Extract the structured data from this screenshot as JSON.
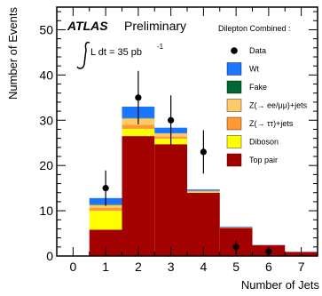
{
  "chart_data": {
    "type": "bar",
    "stacked": true,
    "xlabel": "Number of Jets",
    "ylabel": "Number of Events",
    "xlim": [
      -0.5,
      7.5
    ],
    "ylim": [
      0,
      55
    ],
    "x_ticks": [
      "0",
      "1",
      "2",
      "3",
      "4",
      "5",
      "6",
      "7"
    ],
    "y_ticks": [
      "0",
      "10",
      "20",
      "30",
      "40",
      "50"
    ],
    "categories": [
      "0",
      "1",
      "2",
      "3",
      "4",
      "5",
      "6",
      "7"
    ],
    "annotations": {
      "experiment": "ATLAS",
      "status": "Preliminary",
      "luminosity": "L dt =  35  pb",
      "luminosity_exponent": "-1"
    },
    "legend": {
      "title": "Dilepton Combined :",
      "placement": "top-right"
    },
    "series": [
      {
        "name": "Top pair",
        "color": "#a30000",
        "values": [
          0,
          5.8,
          26.5,
          24.7,
          14.0,
          6.2,
          2.4,
          0.9
        ]
      },
      {
        "name": "Diboson",
        "color": "#ffff00",
        "values": [
          0,
          4.2,
          1.6,
          1.2,
          0.15,
          0.05,
          0,
          0
        ]
      },
      {
        "name": "Z(→ ττ)+jets",
        "color": "#ff9933",
        "values": [
          0,
          0.6,
          0.9,
          0.5,
          0.1,
          0.05,
          0,
          0
        ]
      },
      {
        "name": "Z(→ ee/μμ)+jets",
        "color": "#ffc966",
        "values": [
          0,
          0.7,
          1.4,
          0.7,
          0.15,
          0.05,
          0,
          0
        ]
      },
      {
        "name": "Fake",
        "color": "#006633",
        "values": [
          0,
          0.1,
          0.1,
          0.05,
          0,
          0,
          0,
          0
        ]
      },
      {
        "name": "Wt",
        "color": "#1a75ff",
        "values": [
          0,
          1.4,
          2.5,
          1.2,
          0.3,
          0.15,
          0.05,
          0
        ]
      }
    ],
    "data": {
      "name": "Data",
      "points": [
        {
          "x": 1,
          "y": 15,
          "err": 3.9
        },
        {
          "x": 2,
          "y": 35,
          "err": 5.9
        },
        {
          "x": 3,
          "y": 30,
          "err": 5.5
        },
        {
          "x": 4,
          "y": 23,
          "err": 4.8
        },
        {
          "x": 5,
          "y": 2,
          "err": 1.4
        },
        {
          "x": 6,
          "y": 1,
          "err": 1.0
        }
      ]
    }
  }
}
